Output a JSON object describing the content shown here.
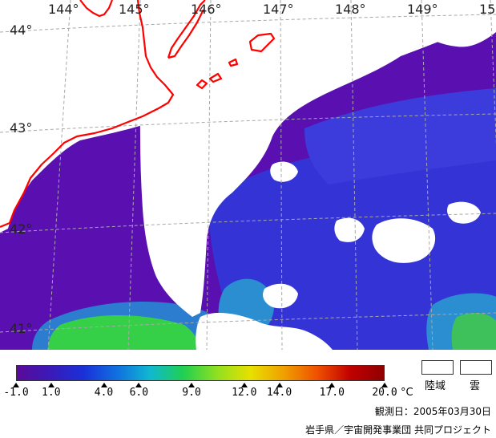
{
  "map": {
    "longitude_labels": [
      "144°",
      "145°",
      "146°",
      "147°",
      "148°",
      "149°",
      "15"
    ],
    "latitude_labels": [
      "44°",
      "43°",
      "42°",
      "41°"
    ],
    "colors": {
      "land_cloud": "#ffffff",
      "coastline": "#ff0000",
      "graticule": "#b0b0b0",
      "cold_water": "#5a0fb0",
      "mid_water": "#3030d8",
      "warm_water": "#2aa0d0",
      "warmest_water": "#34d040"
    }
  },
  "colorbar": {
    "gradient": [
      "#5a0a9a",
      "#3a1ab8",
      "#1a30d8",
      "#1070e0",
      "#10b8d0",
      "#20d050",
      "#90e020",
      "#e8e000",
      "#f0a000",
      "#f05000",
      "#c00000",
      "#900000"
    ],
    "ticks": [
      {
        "value": -1.0,
        "label": "-1.0"
      },
      {
        "value": 1.0,
        "label": "1.0"
      },
      {
        "value": 4.0,
        "label": "4.0"
      },
      {
        "value": 6.0,
        "label": "6.0"
      },
      {
        "value": 9.0,
        "label": "9.0"
      },
      {
        "value": 12.0,
        "label": "12.0"
      },
      {
        "value": 14.0,
        "label": "14.0"
      },
      {
        "value": 17.0,
        "label": "17.0"
      },
      {
        "value": 20.0,
        "label": "20.0"
      }
    ],
    "range": [
      -1.0,
      20.0
    ],
    "unit": "°C"
  },
  "legend": {
    "land_label": "陸域",
    "cloud_label": "雲"
  },
  "footer": {
    "observation_date": "観測日：2005年03月30日",
    "credit": "岩手県／宇宙開発事業団 共同プロジェクト"
  }
}
